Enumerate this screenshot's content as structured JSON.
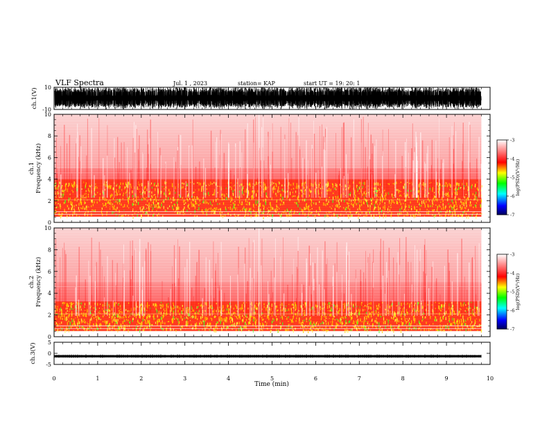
{
  "header": {
    "title": "VLF Spectra",
    "date": "Jul. 1 , 2023",
    "station": "station= KAP",
    "start": "start UT = 19: 20: 1"
  },
  "chart_data": [
    {
      "type": "line",
      "name": "ch1-waveform",
      "ylabel": "ch.1(V)",
      "ylim": [
        -10,
        10
      ],
      "yticks": [
        "10",
        "-10"
      ],
      "xlim": [
        0,
        10
      ],
      "description_values": {
        "typical_amplitude_V": [
          -10,
          10
        ]
      }
    },
    {
      "type": "heatmap",
      "name": "ch1-spectrogram",
      "ylabel": "ch.1\nFrequency (kHz)",
      "ylabel_lines": [
        "ch.1",
        "Frequency (kHz)"
      ],
      "ylim": [
        0,
        10
      ],
      "yticks": [
        "0",
        "2",
        "4",
        "6",
        "8",
        "10"
      ],
      "xlim": [
        0,
        9.8
      ],
      "colorbar": {
        "label": "log(PSD)(V²/Hz)",
        "range": [
          -7,
          -3
        ],
        "ticks": [
          "-3",
          "-4",
          "-5",
          "-6",
          "-7"
        ]
      },
      "intense_band_kHz": [
        0.5,
        3.8
      ]
    },
    {
      "type": "heatmap",
      "name": "ch2-spectrogram",
      "ylabel": "ch.2\nFrequency (kHz)",
      "ylabel_lines": [
        "ch.2",
        "Frequency (kHz)"
      ],
      "ylim": [
        0,
        10
      ],
      "yticks": [
        "0",
        "2",
        "4",
        "6",
        "8",
        "10"
      ],
      "xlim": [
        0,
        9.8
      ],
      "colorbar": {
        "label": "log(PSD)(V²/Hz)",
        "range": [
          -7,
          -3
        ],
        "ticks": [
          "-3",
          "-4",
          "-5",
          "-6",
          "-7"
        ]
      },
      "intense_band_kHz": [
        0.5,
        3.2
      ]
    },
    {
      "type": "line",
      "name": "ch3-waveform",
      "ylabel": "ch.3(V)",
      "ylim": [
        -5,
        5
      ],
      "yticks": [
        "5",
        "0",
        "-5"
      ],
      "xlim": [
        0,
        10
      ],
      "level_V": -1.3
    }
  ],
  "xaxis": {
    "label": "Time (min)",
    "ticks": [
      "0",
      "1",
      "2",
      "3",
      "4",
      "5",
      "6",
      "7",
      "8",
      "9",
      "10"
    ],
    "range": [
      0,
      10
    ]
  }
}
